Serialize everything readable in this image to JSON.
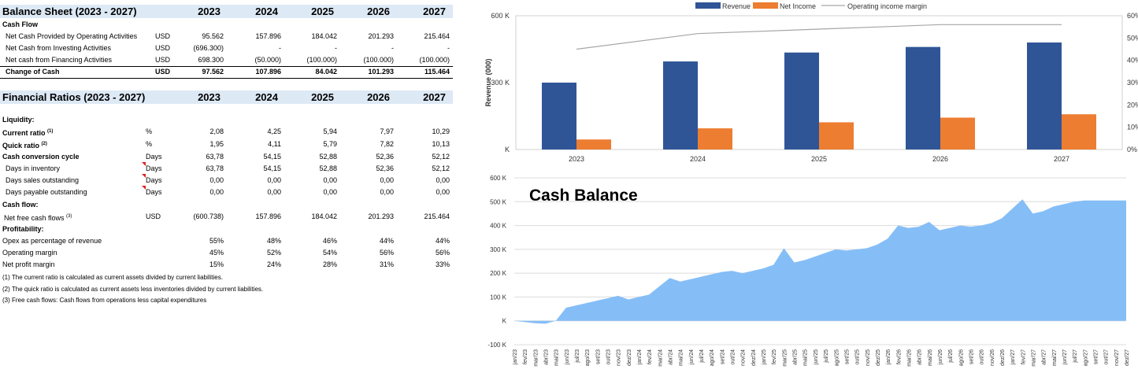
{
  "balance": {
    "title": "Balance Sheet (2023 - 2027)",
    "years": [
      "2023",
      "2024",
      "2025",
      "2026",
      "2027"
    ],
    "cash_flow_heading": "Cash Flow",
    "rows": [
      {
        "label": "Net Cash Provided by Operating Activities",
        "unit": "USD",
        "values": [
          "95.562",
          "157.896",
          "184.042",
          "201.293",
          "215.464"
        ]
      },
      {
        "label": "Net Cash from Investing Activities",
        "unit": "USD",
        "values": [
          "(696.300)",
          "-",
          "-",
          "-",
          "-"
        ]
      },
      {
        "label": "Net cash from Financing Activities",
        "unit": "USD",
        "values": [
          "698.300",
          "(50.000)",
          "(100.000)",
          "(100.000)",
          "(100.000)"
        ]
      }
    ],
    "total": {
      "label": "Change of Cash",
      "unit": "USD",
      "values": [
        "97.562",
        "107.896",
        "84.042",
        "101.293",
        "115.464"
      ]
    }
  },
  "ratios": {
    "title": "Financial Ratios (2023 - 2027)",
    "years": [
      "2023",
      "2024",
      "2025",
      "2026",
      "2027"
    ],
    "liquidity_heading": "Liquidity:",
    "current_ratio": {
      "label": "Current ratio",
      "sup": "(1)",
      "unit": "%",
      "values": [
        "2,08",
        "4,25",
        "5,94",
        "7,97",
        "10,29"
      ]
    },
    "quick_ratio": {
      "label": "Quick ratio",
      "sup": "(2)",
      "unit": "%",
      "values": [
        "1,95",
        "4,11",
        "5,79",
        "7,82",
        "10,13"
      ]
    },
    "ccc": {
      "label": "Cash conversion cycle",
      "unit": "Days",
      "values": [
        "63,78",
        "54,15",
        "52,88",
        "52,36",
        "52,12"
      ]
    },
    "dio": {
      "label": "Days in inventory",
      "unit": "Days",
      "values": [
        "63,78",
        "54,15",
        "52,88",
        "52,36",
        "52,12"
      ]
    },
    "dso": {
      "label": "Days sales outstanding",
      "unit": "Days",
      "values": [
        "0,00",
        "0,00",
        "0,00",
        "0,00",
        "0,00"
      ]
    },
    "dpo": {
      "label": "Days payable outstanding",
      "unit": "Days",
      "values": [
        "0,00",
        "0,00",
        "0,00",
        "0,00",
        "0,00"
      ]
    },
    "cashflow_heading": "Cash flow:",
    "nfcf": {
      "label": "Net free cash flows",
      "sup": "(3)",
      "unit": "USD",
      "values": [
        "(600.738)",
        "157.896",
        "184.042",
        "201.293",
        "215.464"
      ]
    },
    "profitability_heading": "Profitability:",
    "opex": {
      "label": "Opex as percentage of revenue",
      "values": [
        "55%",
        "48%",
        "46%",
        "44%",
        "44%"
      ]
    },
    "opmargin": {
      "label": "Operating margin",
      "values": [
        "45%",
        "52%",
        "54%",
        "56%",
        "56%"
      ]
    },
    "netmargin": {
      "label": "Net profit margin",
      "values": [
        "15%",
        "24%",
        "28%",
        "31%",
        "33%"
      ]
    },
    "notes": [
      "(1) The current ratio is calculated as current assets divided by current liabilities.",
      "(2) The quick ratio is calculated as current assets less inventories divided by current liabilities.",
      "(3)  Free cash flows:  Cash flows from operations less capital expenditures"
    ]
  },
  "chart_data": [
    {
      "type": "bar",
      "title": "",
      "categories": [
        "2023",
        "2024",
        "2025",
        "2026",
        "2027"
      ],
      "series": [
        {
          "name": "Revenue",
          "type": "bar",
          "color": "#2f5597",
          "values": [
            300000,
            395000,
            435000,
            460000,
            480000
          ]
        },
        {
          "name": "Net Income",
          "type": "bar",
          "color": "#ed7d31",
          "values": [
            45000,
            95000,
            122000,
            143000,
            158000
          ]
        },
        {
          "name": "Operating income margin",
          "type": "line",
          "axis": "right",
          "color": "#a6a6a6",
          "values": [
            45,
            52,
            54,
            56,
            56
          ]
        }
      ],
      "ylabel": "Revenue (000)",
      "ylim": [
        0,
        600000
      ],
      "yticks": [
        "K",
        "300 K",
        "600 K"
      ],
      "y2lim": [
        0,
        60
      ],
      "y2ticks": [
        "0%",
        "10%",
        "20%",
        "30%",
        "40%",
        "50%",
        "60%"
      ],
      "legend": "top"
    },
    {
      "type": "area",
      "title": "Cash Balance",
      "color": "#85bef7",
      "x": [
        "jan/23",
        "fev/23",
        "mar/23",
        "abr/23",
        "mai/23",
        "jun/23",
        "jul/23",
        "ago/23",
        "set/23",
        "out/23",
        "nov/23",
        "dez/23",
        "jan/24",
        "fev/24",
        "mar/24",
        "abr/24",
        "mai/24",
        "jun/24",
        "jul/24",
        "ago/24",
        "set/24",
        "out/24",
        "nov/24",
        "dez/24",
        "jan/25",
        "fev/25",
        "mar/25",
        "abr/25",
        "mai/25",
        "jun/25",
        "jul/25",
        "ago/25",
        "set/25",
        "out/25",
        "nov/25",
        "dez/25",
        "jan/26",
        "fev/26",
        "mar/26",
        "abr/26",
        "mai/26",
        "jun/26",
        "jul/26",
        "ago/26",
        "set/26",
        "out/26",
        "nov/26",
        "dez/26",
        "jan/27",
        "fev/27",
        "mar/27",
        "abr/27",
        "mai/27",
        "jun/27",
        "jul/27",
        "ago/27",
        "set/27",
        "out/27",
        "nov/27",
        "dez/27"
      ],
      "values": [
        0,
        -5000,
        -10000,
        -12000,
        0,
        55000,
        65000,
        75000,
        85000,
        95000,
        105000,
        90000,
        100000,
        110000,
        145000,
        180000,
        165000,
        175000,
        185000,
        195000,
        205000,
        210000,
        200000,
        210000,
        220000,
        235000,
        305000,
        245000,
        255000,
        270000,
        285000,
        300000,
        295000,
        300000,
        305000,
        320000,
        345000,
        400000,
        390000,
        395000,
        415000,
        380000,
        390000,
        400000,
        395000,
        400000,
        410000,
        430000,
        470000,
        510000,
        450000,
        460000,
        480000,
        490000,
        500000,
        505000,
        505000,
        505000,
        505000,
        505000
      ],
      "ylim": [
        -100000,
        600000
      ],
      "yticks": [
        "-100 K",
        "K",
        "100 K",
        "200 K",
        "300 K",
        "400 K",
        "500 K",
        "600 K"
      ]
    }
  ]
}
